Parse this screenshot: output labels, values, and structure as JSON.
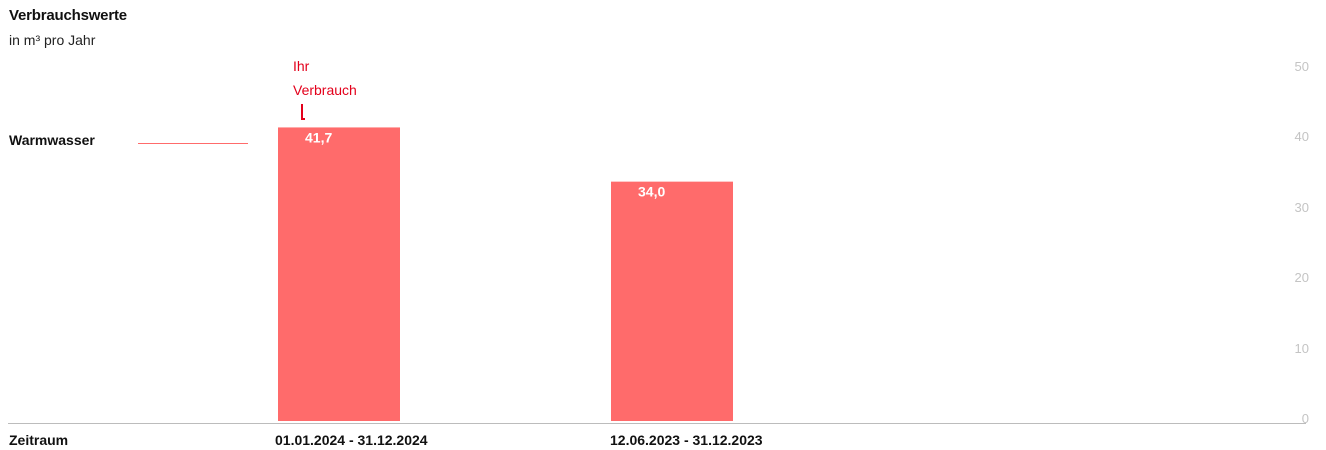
{
  "colors": {
    "series": "#ff6b6b",
    "annotation": "#e3001b",
    "tick": "#c4c4c4",
    "axis": "#bcbcbc"
  },
  "chart_data": {
    "type": "bar",
    "title": "Verbrauchswerte",
    "subtitle": "in m³ pro Jahr",
    "xlabel": "Zeitraum",
    "categories": [
      "01.01.2024 - 31.12.2024",
      "12.06.2023 - 31.12.2023"
    ],
    "series": [
      {
        "name": "Warmwasser",
        "values": [
          41.7,
          34.0
        ],
        "value_labels": [
          "41,7",
          "34,0"
        ]
      }
    ],
    "ylim": [
      0,
      50
    ],
    "yticks": [
      0,
      10,
      20,
      30,
      40,
      50
    ],
    "annotation": {
      "line1": "Ihr",
      "line2": "Verbrauch"
    },
    "grid": false
  }
}
